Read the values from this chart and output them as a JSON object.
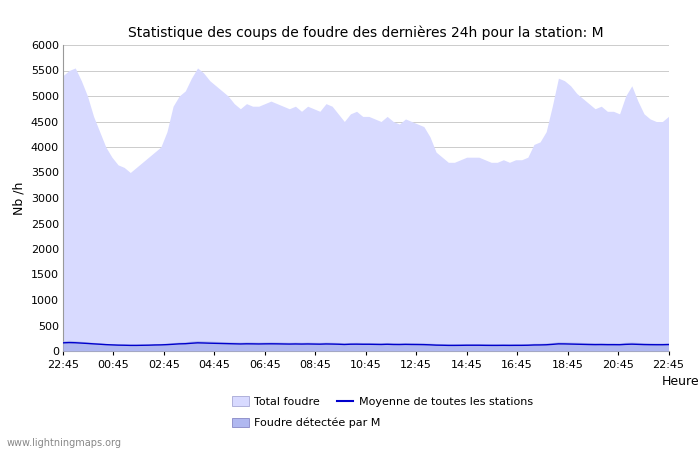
{
  "title": "Statistique des coups de foudre des dernières 24h pour la station: M",
  "xlabel": "Heure",
  "ylabel": "Nb /h",
  "watermark": "www.lightningmaps.org",
  "ylim": [
    0,
    6000
  ],
  "yticks": [
    0,
    500,
    1000,
    1500,
    2000,
    2500,
    3000,
    3500,
    4000,
    4500,
    5000,
    5500,
    6000
  ],
  "xtick_labels": [
    "22:45",
    "00:45",
    "02:45",
    "04:45",
    "06:45",
    "08:45",
    "10:45",
    "12:45",
    "14:45",
    "16:45",
    "18:45",
    "20:45",
    "22:45"
  ],
  "bg_color": "#ffffff",
  "plot_bg_color": "#ffffff",
  "fill_total_color": "#d8daff",
  "fill_station_color": "#b0b8f0",
  "line_color": "#0000cc",
  "grid_color": "#cccccc",
  "title_fontsize": 10,
  "total_foudre": [
    5400,
    5500,
    5550,
    5300,
    5000,
    4600,
    4300,
    4000,
    3800,
    3650,
    3600,
    3500,
    3600,
    3700,
    3800,
    3900,
    4000,
    4300,
    4800,
    5000,
    5100,
    5350,
    5550,
    5450,
    5300,
    5200,
    5100,
    5000,
    4850,
    4750,
    4850,
    4800,
    4800,
    4850,
    4900,
    4850,
    4800,
    4750,
    4800,
    4700,
    4800,
    4750,
    4700,
    4850,
    4800,
    4650,
    4500,
    4650,
    4700,
    4600,
    4600,
    4550,
    4500,
    4600,
    4500,
    4450,
    4550,
    4500,
    4450,
    4400,
    4200,
    3900,
    3800,
    3700,
    3700,
    3750,
    3800,
    3800,
    3800,
    3750,
    3700,
    3700,
    3750,
    3700,
    3750,
    3750,
    3800,
    4050,
    4100,
    4300,
    4800,
    5350,
    5300,
    5200,
    5050,
    4950,
    4850,
    4750,
    4800,
    4700,
    4700,
    4650,
    5000,
    5200,
    4900,
    4650,
    4550,
    4500,
    4500,
    4600
  ],
  "station_foudre": [
    200,
    210,
    200,
    190,
    180,
    170,
    160,
    150,
    145,
    140,
    138,
    135,
    135,
    138,
    140,
    145,
    148,
    155,
    165,
    175,
    180,
    195,
    205,
    200,
    195,
    190,
    185,
    182,
    178,
    175,
    180,
    178,
    175,
    178,
    180,
    178,
    175,
    172,
    175,
    172,
    175,
    172,
    170,
    175,
    172,
    168,
    162,
    168,
    170,
    167,
    167,
    165,
    163,
    167,
    163,
    162,
    165,
    163,
    162,
    160,
    155,
    148,
    145,
    142,
    142,
    143,
    145,
    145,
    145,
    143,
    142,
    142,
    143,
    142,
    143,
    143,
    145,
    152,
    153,
    158,
    167,
    180,
    178,
    175,
    172,
    168,
    165,
    162,
    163,
    160,
    160,
    158,
    170,
    175,
    168,
    162,
    160,
    158,
    158,
    162
  ],
  "moyenne_stations": [
    160,
    165,
    162,
    155,
    148,
    140,
    133,
    125,
    120,
    115,
    113,
    110,
    110,
    112,
    114,
    118,
    120,
    125,
    132,
    140,
    143,
    152,
    160,
    157,
    153,
    150,
    147,
    144,
    141,
    138,
    141,
    140,
    138,
    140,
    141,
    140,
    138,
    136,
    138,
    136,
    138,
    136,
    134,
    138,
    136,
    133,
    128,
    133,
    134,
    132,
    132,
    130,
    128,
    132,
    128,
    127,
    130,
    128,
    127,
    125,
    121,
    115,
    113,
    110,
    110,
    111,
    113,
    113,
    113,
    111,
    110,
    110,
    111,
    110,
    111,
    111,
    113,
    118,
    119,
    122,
    130,
    140,
    139,
    136,
    133,
    130,
    127,
    125,
    126,
    124,
    124,
    123,
    130,
    134,
    130,
    126,
    124,
    123,
    123,
    126
  ],
  "legend_total": "Total foudre",
  "legend_station": "Foudre détectée par M",
  "legend_moyenne": "Moyenne de toutes les stations"
}
